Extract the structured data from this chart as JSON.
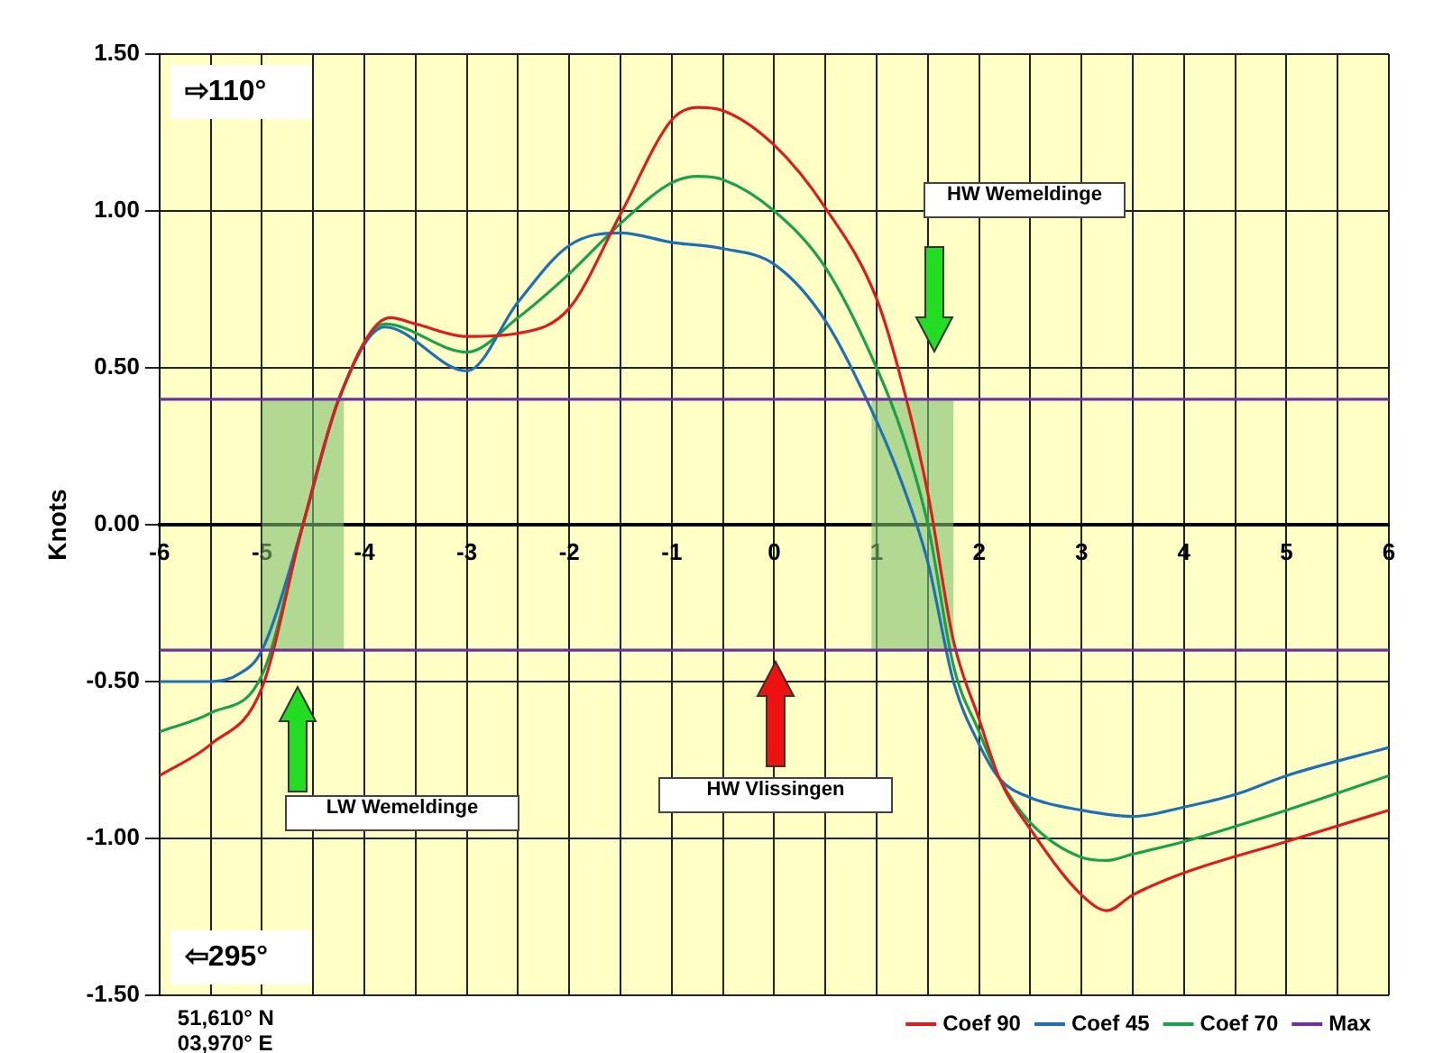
{
  "chart_data": {
    "type": "line",
    "ylabel": "Knots",
    "xlim": [
      -6,
      6
    ],
    "ylim": [
      -1.5,
      1.5
    ],
    "xticks": [
      -6,
      {
        "value": -5.5,
        "label": null
      },
      -5,
      {
        "value": -4.5,
        "label": null
      },
      -4,
      {
        "value": -3.5,
        "label": null
      },
      -3,
      {
        "value": -2.5,
        "label": null
      },
      -2,
      {
        "value": -1.5,
        "label": null
      },
      -1,
      {
        "value": -0.5,
        "label": null
      },
      0,
      {
        "value": 0.5,
        "label": null
      },
      1,
      {
        "value": 1.5,
        "label": null
      },
      2,
      {
        "value": 2.5,
        "label": null
      },
      3,
      {
        "value": 3.5,
        "label": null
      },
      4,
      {
        "value": 4.5,
        "label": null
      },
      5,
      {
        "value": 5.5,
        "label": null
      },
      6
    ],
    "yticks": [
      {
        "value": -1.5,
        "label": "-1.50"
      },
      {
        "value": -1,
        "label": "-1.00"
      },
      {
        "value": -0.5,
        "label": "-0.50"
      },
      {
        "value": 0,
        "label": "0.00"
      },
      {
        "value": 0.5,
        "label": "0.50"
      },
      {
        "value": 1,
        "label": "1.00"
      },
      {
        "value": 1.5,
        "label": "1.50"
      }
    ],
    "grid": true,
    "legend": "bottom right",
    "marker": "none",
    "line_style": "solid",
    "series": [
      {
        "name": "Coef 90",
        "color": "#dd1c1c",
        "x": [
          -6,
          -5.5,
          -5,
          -4.6,
          -4.25,
          -3.75,
          -3.5,
          -3,
          -2.5,
          -2,
          -1.5,
          -1,
          -0.75,
          -0.5,
          0,
          0.5,
          1,
          1.25,
          1.5,
          1.75,
          2,
          2.2,
          2.5,
          3,
          3.25,
          3.5,
          4,
          5,
          6
        ],
        "values": [
          -0.8,
          -0.7,
          -0.52,
          0,
          0.4,
          0.66,
          0.64,
          0.6,
          0.61,
          0.69,
          0.99,
          1.29,
          1.33,
          1.32,
          1.21,
          1.01,
          0.72,
          0.45,
          0.1,
          -0.37,
          -0.62,
          -0.81,
          -0.97,
          -1.18,
          -1.23,
          -1.18,
          -1.11,
          -1.01,
          -0.91
        ]
      },
      {
        "name": "Coef 45",
        "color": "#1f6fb4",
        "x": [
          -6,
          -5.5,
          -5.25,
          -5,
          -4.6,
          -4.25,
          -3.8,
          -3,
          -2.5,
          -2,
          -1.5,
          -1,
          -0.5,
          0,
          0.5,
          1,
          1.25,
          1.5,
          1.75,
          2,
          2.2,
          2.5,
          3,
          3.5,
          4,
          4.5,
          5,
          6
        ],
        "values": [
          -0.5,
          -0.5,
          -0.48,
          -0.4,
          0,
          0.4,
          0.63,
          0.49,
          0.71,
          0.89,
          0.93,
          0.9,
          0.88,
          0.83,
          0.65,
          0.33,
          0.13,
          -0.12,
          -0.5,
          -0.7,
          -0.81,
          -0.87,
          -0.91,
          -0.93,
          -0.9,
          -0.86,
          -0.8,
          -0.71
        ]
      },
      {
        "name": "Coef 70",
        "color": "#1aa14a",
        "x": [
          -6,
          -5.5,
          -5,
          -4.6,
          -4.25,
          -3.8,
          -3,
          -2.5,
          -2,
          -1.5,
          -1,
          -0.75,
          -0.5,
          0,
          0.5,
          1,
          1.25,
          1.5,
          1.75,
          2,
          2.2,
          2.5,
          3,
          3.25,
          3.5,
          4,
          5,
          6
        ],
        "values": [
          -0.66,
          -0.6,
          -0.48,
          0,
          0.4,
          0.64,
          0.55,
          0.66,
          0.8,
          0.96,
          1.09,
          1.11,
          1.1,
          1,
          0.82,
          0.5,
          0.29,
          0,
          -0.45,
          -0.66,
          -0.81,
          -0.95,
          -1.06,
          -1.07,
          -1.05,
          -1.01,
          -0.91,
          -0.8
        ]
      }
    ],
    "ref_lines": [
      {
        "axis": "y",
        "value": 0.4,
        "label": "Max",
        "color": "#7030a0"
      },
      {
        "axis": "y",
        "value": -0.4,
        "color": "#7030a0"
      }
    ],
    "bands": [
      {
        "axis": "x",
        "from": -5,
        "to": -4.2,
        "color": "#7fbf6f"
      },
      {
        "axis": "x",
        "from": 0.95,
        "to": 1.75,
        "color": "#7fbf6f"
      }
    ],
    "annotations": [
      "⇨110°",
      "⇦295°",
      "51,610° N",
      "03,970° E",
      "LW Wemeldinge",
      "HW Vlissingen",
      "HW Wemeldinge"
    ]
  }
}
